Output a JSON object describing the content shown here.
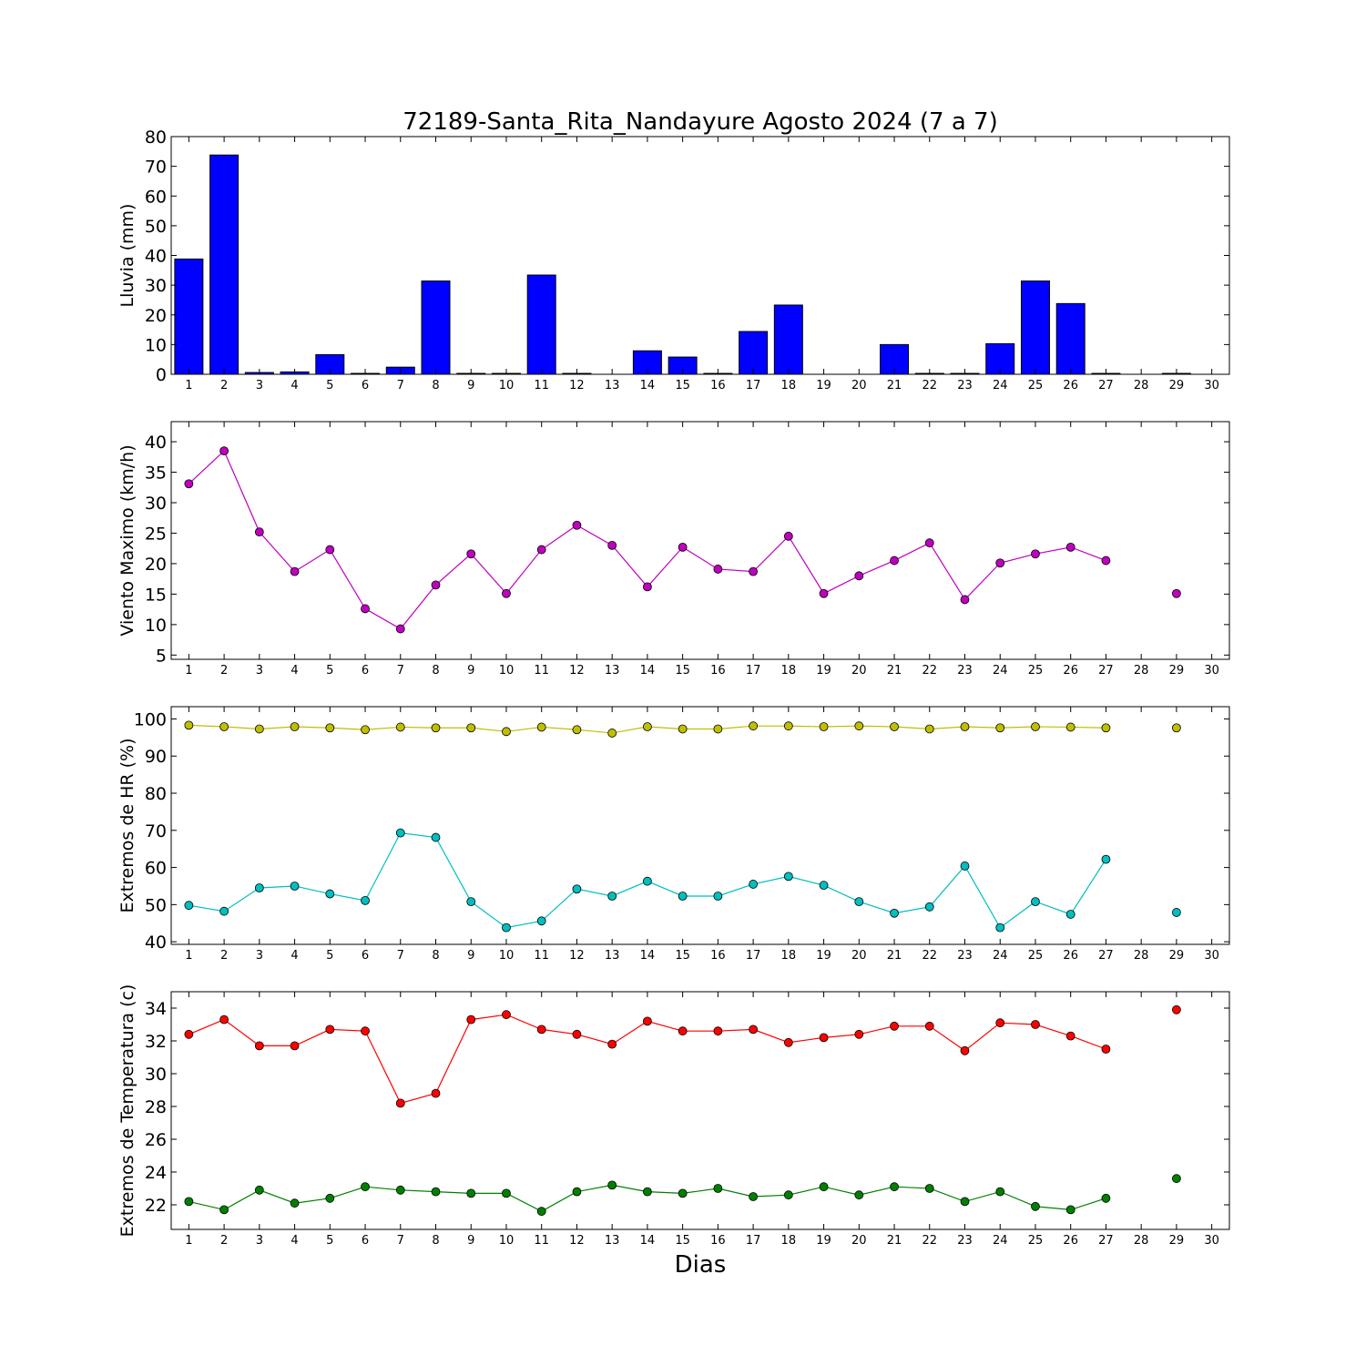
{
  "title": "72189-Santa_Rita_Nandayure Agosto 2024  (7 a 7)",
  "xlabel": "Dias",
  "chart_data": [
    {
      "type": "bar",
      "ylabel": "Lluvia (mm)",
      "ylim": [
        0,
        80
      ],
      "yticks": [
        0,
        10,
        20,
        30,
        40,
        50,
        60,
        70,
        80
      ],
      "xlim": [
        0.5,
        30.5
      ],
      "xticks": [
        1,
        2,
        3,
        4,
        5,
        6,
        7,
        8,
        9,
        10,
        11,
        12,
        13,
        14,
        15,
        16,
        17,
        18,
        19,
        20,
        21,
        22,
        23,
        24,
        25,
        26,
        27,
        28,
        29,
        30
      ],
      "grid": false,
      "series": [
        {
          "color": "#0000ff",
          "x": [
            1,
            2,
            3,
            4,
            5,
            6,
            7,
            8,
            9,
            10,
            11,
            12,
            13,
            14,
            15,
            16,
            17,
            18,
            19,
            20,
            21,
            22,
            23,
            24,
            25,
            26,
            27,
            28,
            29,
            30
          ],
          "values": [
            38.8,
            73.8,
            0.6,
            0.8,
            6.6,
            0.3,
            2.4,
            31.4,
            0.3,
            0.3,
            33.4,
            0.3,
            0,
            7.9,
            5.8,
            0.3,
            14.4,
            23.3,
            0,
            0,
            10.0,
            0.3,
            0.3,
            10.3,
            31.4,
            23.8,
            0.3,
            0,
            0.3,
            0
          ]
        }
      ]
    },
    {
      "type": "line",
      "ylabel": "Viento Maximo (km/h)",
      "ylim": [
        4.3,
        43.3
      ],
      "yticks": [
        5,
        10,
        15,
        20,
        25,
        30,
        35,
        40
      ],
      "xlim": [
        0.5,
        30.5
      ],
      "xticks": [
        1,
        2,
        3,
        4,
        5,
        6,
        7,
        8,
        9,
        10,
        11,
        12,
        13,
        14,
        15,
        16,
        17,
        18,
        19,
        20,
        21,
        22,
        23,
        24,
        25,
        26,
        27,
        28,
        29,
        30
      ],
      "grid": false,
      "series": [
        {
          "color": "#bf00bf",
          "x": [
            1,
            2,
            3,
            4,
            5,
            6,
            7,
            8,
            9,
            10,
            11,
            12,
            13,
            14,
            15,
            16,
            17,
            18,
            19,
            20,
            21,
            22,
            23,
            24,
            25,
            26,
            27,
            28,
            29,
            30
          ],
          "values": [
            33.1,
            38.5,
            25.2,
            18.7,
            22.3,
            12.6,
            9.3,
            16.5,
            21.6,
            15.1,
            22.3,
            26.3,
            23.0,
            16.2,
            22.7,
            19.1,
            18.7,
            24.5,
            15.1,
            18.0,
            20.5,
            23.4,
            14.1,
            20.1,
            21.6,
            22.7,
            20.5,
            null,
            15.1,
            null
          ]
        }
      ]
    },
    {
      "type": "line",
      "ylabel": "Extremos de HR (%)",
      "ylim": [
        39.3,
        103.3
      ],
      "yticks": [
        40,
        50,
        60,
        70,
        80,
        90,
        100
      ],
      "xlim": [
        0.5,
        30.5
      ],
      "xticks": [
        1,
        2,
        3,
        4,
        5,
        6,
        7,
        8,
        9,
        10,
        11,
        12,
        13,
        14,
        15,
        16,
        17,
        18,
        19,
        20,
        21,
        22,
        23,
        24,
        25,
        26,
        27,
        28,
        29,
        30
      ],
      "grid": false,
      "series": [
        {
          "color": "#bfbf00",
          "x": [
            1,
            2,
            3,
            4,
            5,
            6,
            7,
            8,
            9,
            10,
            11,
            12,
            13,
            14,
            15,
            16,
            17,
            18,
            19,
            20,
            21,
            22,
            23,
            24,
            25,
            26,
            27,
            28,
            29,
            30
          ],
          "values": [
            98.3,
            97.9,
            97.3,
            97.9,
            97.6,
            97.1,
            97.8,
            97.6,
            97.6,
            96.6,
            97.8,
            97.1,
            96.2,
            97.9,
            97.3,
            97.3,
            98.1,
            98.1,
            97.9,
            98.1,
            97.9,
            97.3,
            97.9,
            97.6,
            97.9,
            97.8,
            97.6,
            null,
            97.6,
            null
          ]
        },
        {
          "color": "#00bfbf",
          "x": [
            1,
            2,
            3,
            4,
            5,
            6,
            7,
            8,
            9,
            10,
            11,
            12,
            13,
            14,
            15,
            16,
            17,
            18,
            19,
            20,
            21,
            22,
            23,
            24,
            25,
            26,
            27,
            28,
            29,
            30
          ],
          "values": [
            49.8,
            48.2,
            54.5,
            55.0,
            52.9,
            51.1,
            69.3,
            68.1,
            50.8,
            43.8,
            45.6,
            54.2,
            52.3,
            56.3,
            52.3,
            52.3,
            55.5,
            57.6,
            55.2,
            50.8,
            47.7,
            49.4,
            60.4,
            43.8,
            50.8,
            47.4,
            62.2,
            null,
            47.9,
            null
          ]
        }
      ]
    },
    {
      "type": "line",
      "ylabel": "Extremos de Temperatura (c)",
      "ylim": [
        20.5,
        35.0
      ],
      "yticks": [
        22,
        24,
        26,
        28,
        30,
        32,
        34
      ],
      "xlim": [
        0.5,
        30.5
      ],
      "xticks": [
        1,
        2,
        3,
        4,
        5,
        6,
        7,
        8,
        9,
        10,
        11,
        12,
        13,
        14,
        15,
        16,
        17,
        18,
        19,
        20,
        21,
        22,
        23,
        24,
        25,
        26,
        27,
        28,
        29,
        30
      ],
      "grid": false,
      "series": [
        {
          "color": "#ff0000",
          "x": [
            1,
            2,
            3,
            4,
            5,
            6,
            7,
            8,
            9,
            10,
            11,
            12,
            13,
            14,
            15,
            16,
            17,
            18,
            19,
            20,
            21,
            22,
            23,
            24,
            25,
            26,
            27,
            28,
            29,
            30
          ],
          "values": [
            32.4,
            33.3,
            31.7,
            31.7,
            32.7,
            32.6,
            28.2,
            28.8,
            33.3,
            33.6,
            32.7,
            32.4,
            31.8,
            33.2,
            32.6,
            32.6,
            32.7,
            31.9,
            32.2,
            32.4,
            32.9,
            32.9,
            31.4,
            33.1,
            33.0,
            32.3,
            31.5,
            null,
            33.9,
            null
          ]
        },
        {
          "color": "#008000",
          "x": [
            1,
            2,
            3,
            4,
            5,
            6,
            7,
            8,
            9,
            10,
            11,
            12,
            13,
            14,
            15,
            16,
            17,
            18,
            19,
            20,
            21,
            22,
            23,
            24,
            25,
            26,
            27,
            28,
            29,
            30
          ],
          "values": [
            22.2,
            21.7,
            22.9,
            22.1,
            22.4,
            23.1,
            22.9,
            22.8,
            22.7,
            22.7,
            21.6,
            22.8,
            23.2,
            22.8,
            22.7,
            23.0,
            22.5,
            22.6,
            23.1,
            22.6,
            23.1,
            23.0,
            22.2,
            22.8,
            21.9,
            21.7,
            22.4,
            null,
            23.6,
            null
          ]
        }
      ]
    }
  ]
}
